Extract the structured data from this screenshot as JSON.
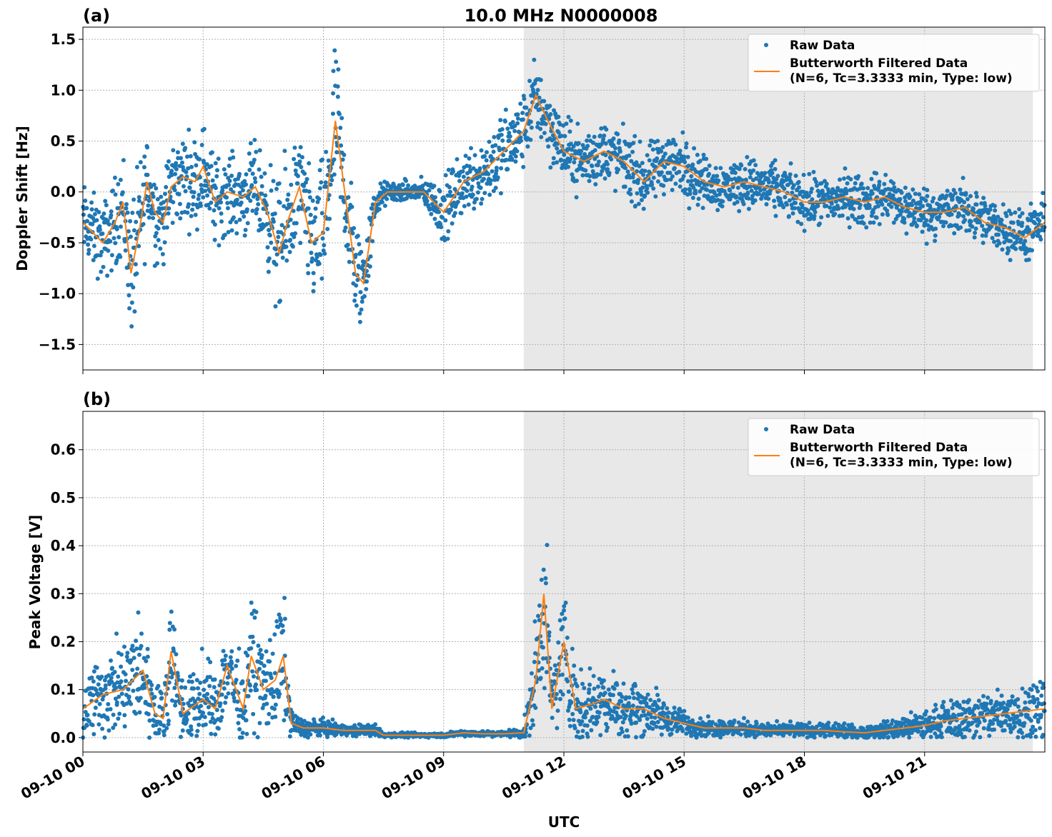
{
  "title": "10.0 MHz N0000008",
  "xlabel": "UTC",
  "x_ticks": [
    "09-10 00",
    "09-10 03",
    "09-10 06",
    "09-10 09",
    "09-10 12",
    "09-10 15",
    "09-10 18",
    "09-10 21"
  ],
  "shaded_region_utc_hours": [
    11.0,
    23.7
  ],
  "colors": {
    "raw": "#1f77b4",
    "filtered": "#ff7f0e",
    "shade": "#e8e8e8",
    "grid": "#b0b0b0"
  },
  "legend": {
    "raw_label": "Raw Data",
    "filtered_label_line1": "Butterworth Filtered Data",
    "filtered_label_line2": "(N=6, Tc=3.3333 min, Type: low)"
  },
  "chart_data": [
    {
      "panel": "(a)",
      "type": "scatter",
      "ylabel": "Doppler Shift [Hz]",
      "xlim_hours": [
        0,
        24
      ],
      "ylim": [
        -1.75,
        1.62
      ],
      "yticks": [
        1.5,
        1.0,
        0.5,
        0.0,
        -0.5,
        -1.0,
        -1.5
      ],
      "ytick_labels": [
        "1.5",
        "1.0",
        "0.5",
        "0.0",
        "−0.5",
        "−1.0",
        "−1.5"
      ],
      "grid": true,
      "legend_position": "top-right",
      "x_hours": [
        0,
        0.5,
        0.8,
        1.0,
        1.2,
        1.4,
        1.6,
        1.8,
        2.0,
        2.2,
        2.5,
        2.8,
        3.0,
        3.3,
        3.6,
        4.0,
        4.3,
        4.6,
        4.9,
        5.1,
        5.4,
        5.7,
        6.0,
        6.3,
        6.5,
        6.8,
        7.0,
        7.3,
        7.6,
        8.0,
        8.5,
        9.0,
        9.5,
        10.0,
        10.5,
        11.0,
        11.3,
        11.6,
        12.0,
        12.5,
        13.0,
        13.5,
        14.0,
        14.5,
        15.0,
        15.5,
        16.0,
        16.5,
        17.0,
        17.5,
        18.0,
        18.5,
        19.0,
        19.5,
        20.0,
        20.5,
        21.0,
        21.5,
        22.0,
        22.5,
        23.0,
        23.5,
        24.0
      ],
      "filtered": [
        -0.3,
        -0.5,
        -0.3,
        -0.1,
        -0.8,
        -0.4,
        0.1,
        -0.2,
        -0.3,
        0.05,
        0.15,
        0.1,
        0.25,
        -0.1,
        0.0,
        -0.05,
        0.05,
        -0.2,
        -0.6,
        -0.3,
        0.05,
        -0.5,
        -0.4,
        0.7,
        0.1,
        -0.8,
        -0.9,
        -0.1,
        0.0,
        0.0,
        0.0,
        -0.2,
        0.1,
        0.2,
        0.4,
        0.6,
        0.95,
        0.7,
        0.4,
        0.3,
        0.4,
        0.3,
        0.1,
        0.3,
        0.25,
        0.1,
        0.05,
        0.1,
        0.05,
        0.0,
        -0.1,
        -0.1,
        -0.05,
        -0.1,
        -0.05,
        -0.15,
        -0.2,
        -0.2,
        -0.15,
        -0.3,
        -0.35,
        -0.45,
        -0.3
      ],
      "spread": [
        0.3,
        0.3,
        0.35,
        0.4,
        0.55,
        0.5,
        0.45,
        0.35,
        0.35,
        0.35,
        0.35,
        0.35,
        0.35,
        0.35,
        0.3,
        0.3,
        0.35,
        0.4,
        0.55,
        0.5,
        0.45,
        0.5,
        0.55,
        0.65,
        0.5,
        0.45,
        0.35,
        0.15,
        0.08,
        0.08,
        0.1,
        0.25,
        0.25,
        0.3,
        0.3,
        0.3,
        0.3,
        0.3,
        0.25,
        0.25,
        0.25,
        0.25,
        0.25,
        0.25,
        0.25,
        0.2,
        0.2,
        0.2,
        0.2,
        0.2,
        0.2,
        0.2,
        0.2,
        0.2,
        0.2,
        0.2,
        0.2,
        0.2,
        0.2,
        0.2,
        0.2,
        0.2,
        0.2
      ]
    },
    {
      "panel": "(b)",
      "type": "scatter",
      "ylabel": "Peak Voltage [V]",
      "xlim_hours": [
        0,
        24
      ],
      "ylim": [
        -0.03,
        0.68
      ],
      "yticks": [
        0.6,
        0.5,
        0.4,
        0.3,
        0.2,
        0.1,
        0.0
      ],
      "ytick_labels": [
        "0.6",
        "0.5",
        "0.4",
        "0.3",
        "0.2",
        "0.1",
        "0.0"
      ],
      "grid": true,
      "legend_position": "top-right",
      "x_hours": [
        0,
        0.5,
        1.0,
        1.5,
        1.8,
        2.0,
        2.2,
        2.5,
        3.0,
        3.3,
        3.6,
        4.0,
        4.2,
        4.5,
        4.8,
        5.0,
        5.2,
        5.5,
        6.0,
        6.5,
        7.0,
        7.3,
        7.5,
        8.0,
        8.5,
        9.0,
        9.5,
        10.0,
        10.5,
        11.0,
        11.3,
        11.5,
        11.7,
        12.0,
        12.3,
        12.7,
        13.0,
        13.5,
        14.0,
        14.5,
        15.0,
        15.5,
        16.0,
        16.5,
        17.0,
        17.5,
        18.0,
        18.5,
        19.0,
        19.5,
        20.0,
        20.5,
        21.0,
        21.5,
        22.0,
        22.5,
        23.0,
        23.5,
        24.0
      ],
      "filtered": [
        0.06,
        0.09,
        0.1,
        0.14,
        0.05,
        0.04,
        0.18,
        0.05,
        0.08,
        0.06,
        0.15,
        0.06,
        0.17,
        0.1,
        0.12,
        0.17,
        0.03,
        0.02,
        0.02,
        0.015,
        0.015,
        0.015,
        0.005,
        0.005,
        0.005,
        0.005,
        0.01,
        0.008,
        0.008,
        0.01,
        0.12,
        0.3,
        0.06,
        0.2,
        0.06,
        0.07,
        0.08,
        0.06,
        0.06,
        0.04,
        0.03,
        0.02,
        0.02,
        0.02,
        0.015,
        0.015,
        0.015,
        0.015,
        0.012,
        0.01,
        0.015,
        0.02,
        0.025,
        0.035,
        0.04,
        0.045,
        0.05,
        0.055,
        0.06
      ],
      "spread": [
        0.06,
        0.07,
        0.08,
        0.1,
        0.05,
        0.05,
        0.1,
        0.05,
        0.07,
        0.06,
        0.08,
        0.06,
        0.1,
        0.08,
        0.1,
        0.12,
        0.02,
        0.015,
        0.015,
        0.01,
        0.01,
        0.01,
        0.004,
        0.004,
        0.004,
        0.004,
        0.005,
        0.005,
        0.005,
        0.01,
        0.1,
        0.15,
        0.06,
        0.1,
        0.06,
        0.06,
        0.06,
        0.05,
        0.05,
        0.03,
        0.02,
        0.015,
        0.015,
        0.015,
        0.012,
        0.012,
        0.012,
        0.012,
        0.012,
        0.012,
        0.015,
        0.02,
        0.025,
        0.03,
        0.035,
        0.04,
        0.045,
        0.05,
        0.06
      ]
    }
  ]
}
